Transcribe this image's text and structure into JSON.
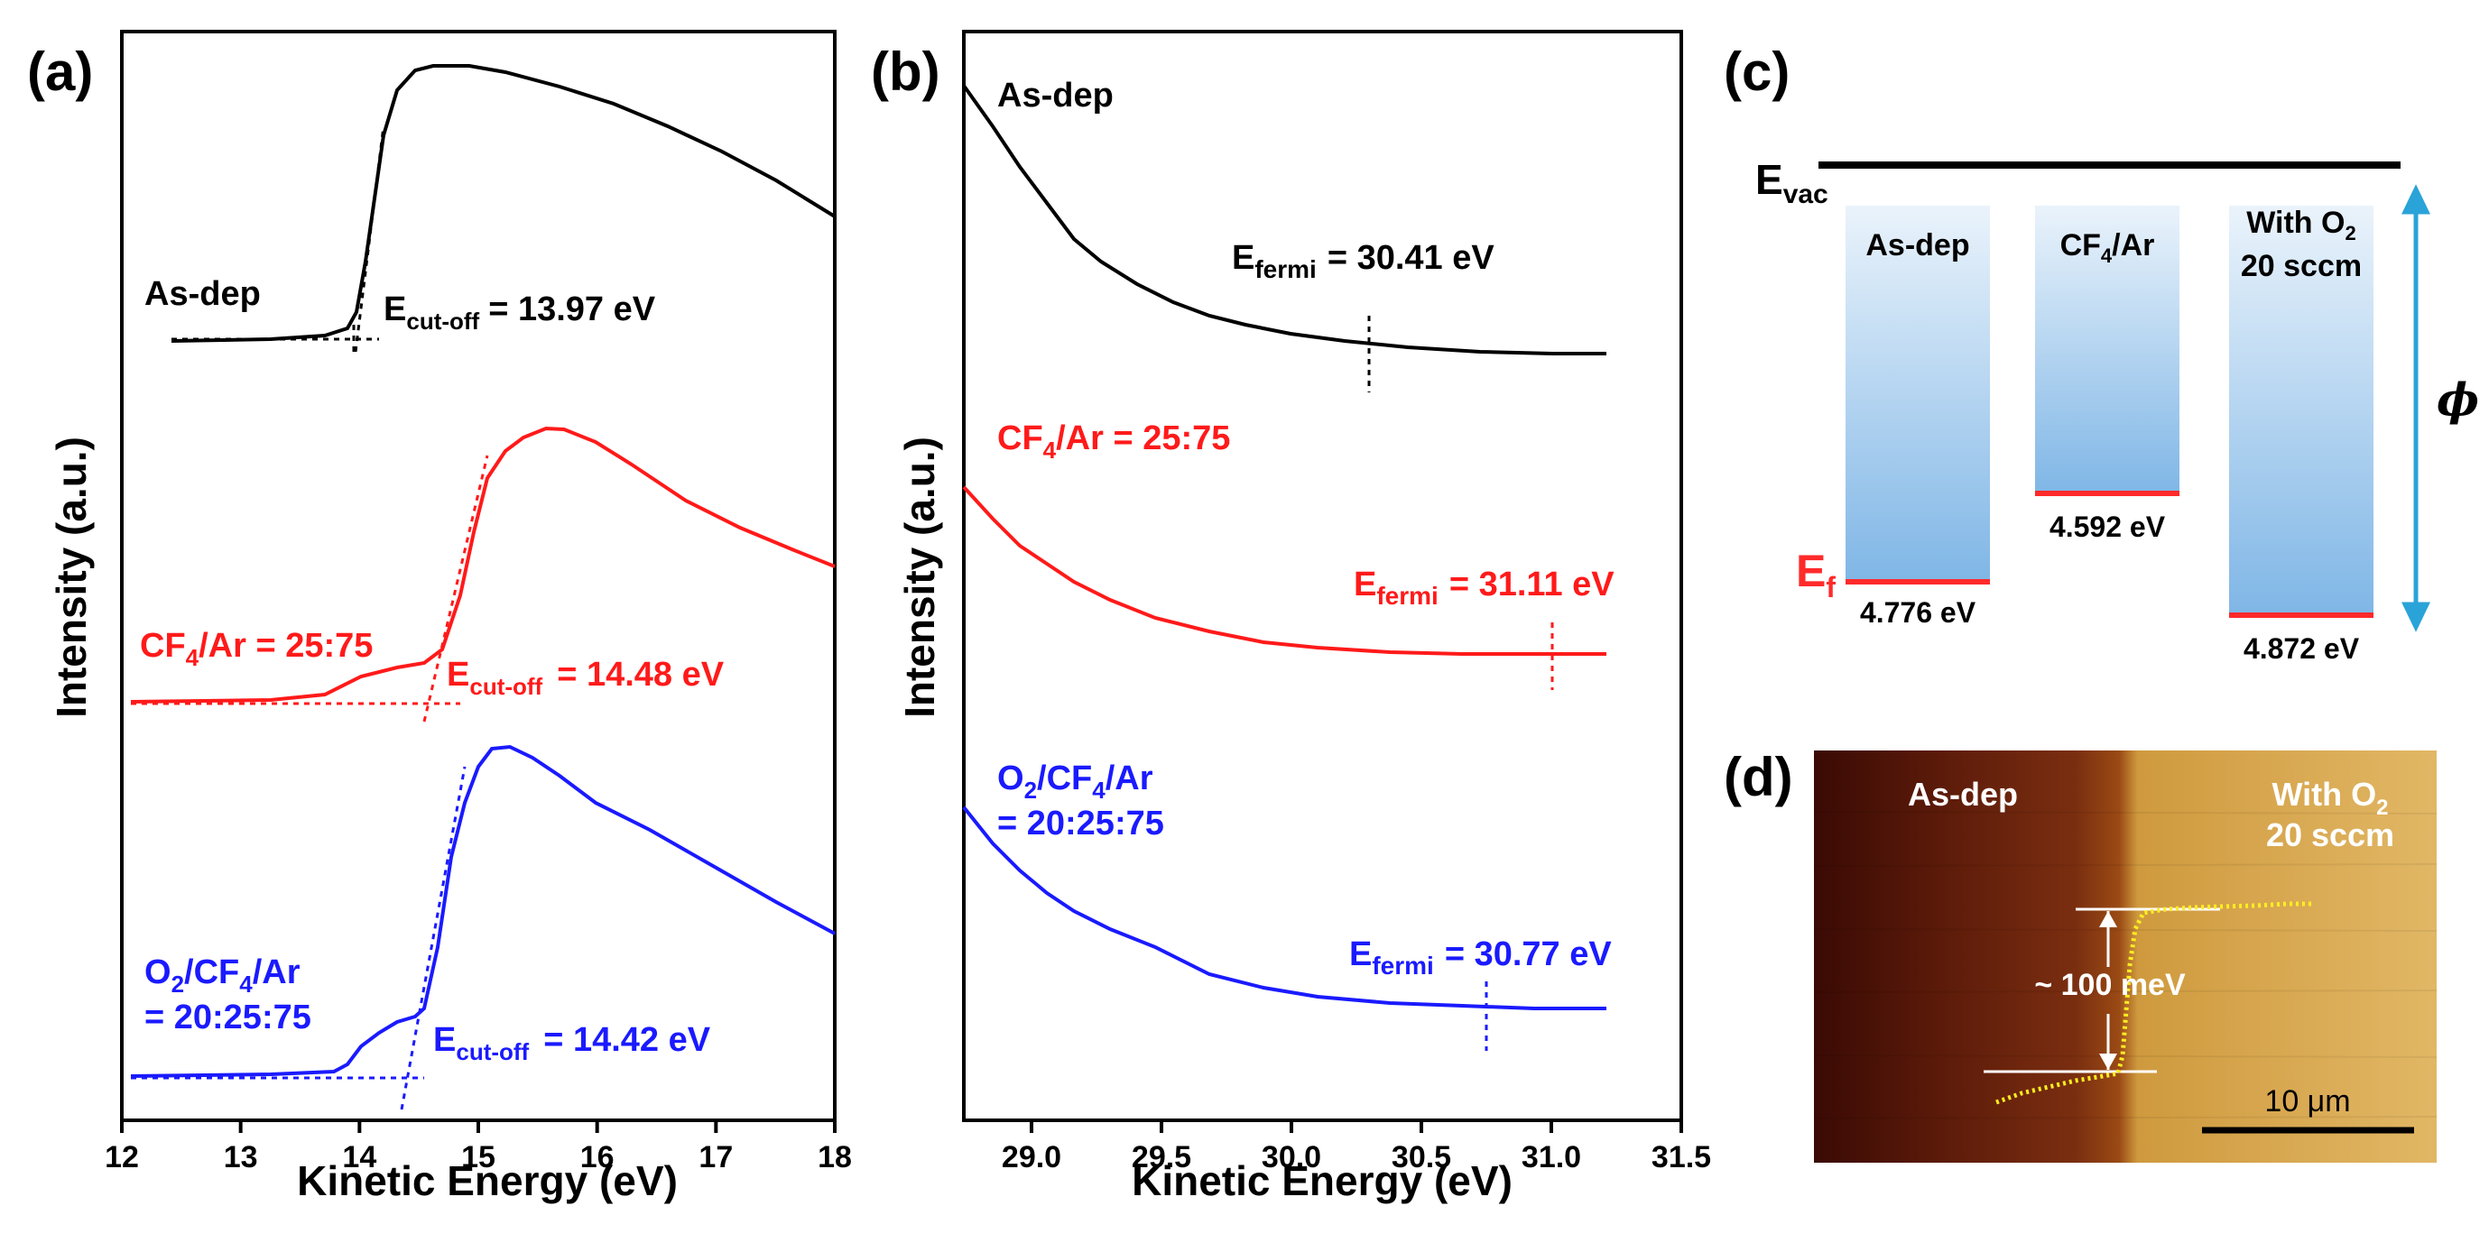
{
  "panel_a": {
    "letter": "(a)",
    "xlabel": "Kinetic Energy (eV)",
    "ylabel": "Intensity (a.u.)",
    "xticks": [
      "12",
      "13",
      "14",
      "15",
      "16",
      "17",
      "18"
    ],
    "curves": [
      {
        "name_parts": [
          "As-dep"
        ],
        "cutoff_prefix": "E",
        "cutoff_sub": "cut-off",
        "cutoff_value": "= 13.97 eV",
        "color": "#000000"
      },
      {
        "name_parts": [
          "CF",
          "4",
          "/Ar = 25:75"
        ],
        "cutoff_prefix": "E",
        "cutoff_sub": "cut-off",
        "cutoff_value": "= 14.48 eV",
        "color": "#ff1a1a"
      },
      {
        "name_line1": [
          "O",
          "2",
          "/CF",
          "4",
          "/Ar"
        ],
        "name_line2": "= 20:25:75",
        "cutoff_prefix": "E",
        "cutoff_sub": "cut-off",
        "cutoff_value": "= 14.42 eV",
        "color": "#1a1aff"
      }
    ]
  },
  "panel_b": {
    "letter": "(b)",
    "xlabel": "Kinetic Energy (eV)",
    "ylabel": "Intensity (a.u.)",
    "xticks": [
      "29.0",
      "29.5",
      "30.0",
      "30.5",
      "31.0",
      "31.5"
    ],
    "curves": [
      {
        "label": "As-dep",
        "fermi_prefix": "E",
        "fermi_sub": "fermi",
        "fermi_value": "= 30.41 eV",
        "color": "#000000"
      },
      {
        "label_parts": [
          "CF",
          "4",
          "/Ar = 25:75"
        ],
        "fermi_prefix": "E",
        "fermi_sub": "fermi",
        "fermi_value": "= 31.11 eV",
        "color": "#ff1a1a"
      },
      {
        "label_line1": [
          "O",
          "2",
          "/CF",
          "4",
          "/Ar"
        ],
        "label_line2": "= 20:25:75",
        "fermi_prefix": "E",
        "fermi_sub": "fermi",
        "fermi_value": "= 30.77 eV",
        "color": "#1a1aff"
      }
    ]
  },
  "panel_c": {
    "letter": "(c)",
    "evac_main": "E",
    "evac_sub": "vac",
    "ef_main": "E",
    "ef_sub": "f",
    "phi": "ϕ",
    "bars": [
      {
        "label_parts": [
          "As-dep"
        ],
        "value": "4.776 eV"
      },
      {
        "label_parts": [
          "CF",
          "4",
          "/Ar"
        ],
        "value": "4.592 eV"
      },
      {
        "label_line1": [
          "With O",
          "2"
        ],
        "label_line2": "20 sccm",
        "value": "4.872 eV"
      }
    ]
  },
  "panel_d": {
    "letter": "(d)",
    "left_label": "As-dep",
    "right_label_line1": "With O",
    "right_label_sub": "2",
    "right_label_line2": "20 sccm",
    "step_label": "~ 100 meV",
    "scale_label": "10 μm"
  },
  "chart_data": [
    {
      "type": "line",
      "xlabel": "Kinetic Energy (eV)",
      "ylabel": "Intensity (a.u.)",
      "xlim": [
        12,
        18
      ],
      "series": [
        {
          "name": "As-dep",
          "x": [
            12.0,
            13.0,
            13.8,
            14.0,
            14.1,
            14.2,
            14.3,
            14.5,
            15.0,
            15.5,
            16.0,
            17.0,
            18.0
          ],
          "y": [
            0.0,
            0.02,
            0.05,
            0.2,
            0.55,
            0.85,
            0.95,
            1.0,
            0.97,
            0.9,
            0.8,
            0.62,
            0.45
          ]
        },
        {
          "name": "CF4/Ar = 25:75",
          "x": [
            12.0,
            13.0,
            13.5,
            14.0,
            14.5,
            14.7,
            15.0,
            15.3,
            15.6,
            16.0,
            17.0,
            18.0
          ],
          "y": [
            0.0,
            0.01,
            0.03,
            0.1,
            0.17,
            0.5,
            0.85,
            0.97,
            1.0,
            0.95,
            0.75,
            0.52
          ]
        },
        {
          "name": "O2/CF4/Ar = 20:25:75",
          "x": [
            12.0,
            13.0,
            13.7,
            14.0,
            14.5,
            14.7,
            14.9,
            15.1,
            15.5,
            16.0,
            17.0,
            18.0
          ],
          "y": [
            0.0,
            0.01,
            0.04,
            0.14,
            0.2,
            0.55,
            0.9,
            1.0,
            0.93,
            0.8,
            0.6,
            0.45
          ]
        }
      ],
      "annotations": [
        "Ecut-off = 13.97 eV",
        "Ecut-off = 14.48 eV",
        "Ecut-off = 14.42 eV"
      ]
    },
    {
      "type": "line",
      "xlabel": "Kinetic Energy (eV)",
      "ylabel": "Intensity (a.u.)",
      "xlim": [
        28.8,
        31.5
      ],
      "series": [
        {
          "name": "As-dep",
          "x": [
            28.8,
            29.0,
            29.2,
            29.5,
            29.8,
            30.0,
            30.3,
            30.6,
            31.0,
            31.2
          ],
          "y": [
            1.0,
            0.8,
            0.58,
            0.33,
            0.18,
            0.12,
            0.07,
            0.04,
            0.03,
            0.03
          ]
        },
        {
          "name": "CF4/Ar = 25:75",
          "x": [
            28.8,
            29.0,
            29.2,
            29.5,
            29.8,
            30.0,
            30.3,
            30.6,
            31.0,
            31.2
          ],
          "y": [
            1.0,
            0.8,
            0.62,
            0.4,
            0.25,
            0.18,
            0.11,
            0.07,
            0.05,
            0.05
          ]
        },
        {
          "name": "O2/CF4/Ar = 20:25:75",
          "x": [
            28.8,
            29.0,
            29.2,
            29.5,
            29.8,
            30.0,
            30.3,
            30.6,
            31.0,
            31.2
          ],
          "y": [
            1.0,
            0.75,
            0.55,
            0.32,
            0.18,
            0.12,
            0.07,
            0.05,
            0.04,
            0.04
          ]
        }
      ],
      "annotations": [
        "Efermi = 30.41 eV",
        "Efermi = 31.11 eV",
        "Efermi = 30.77 eV"
      ]
    }
  ]
}
